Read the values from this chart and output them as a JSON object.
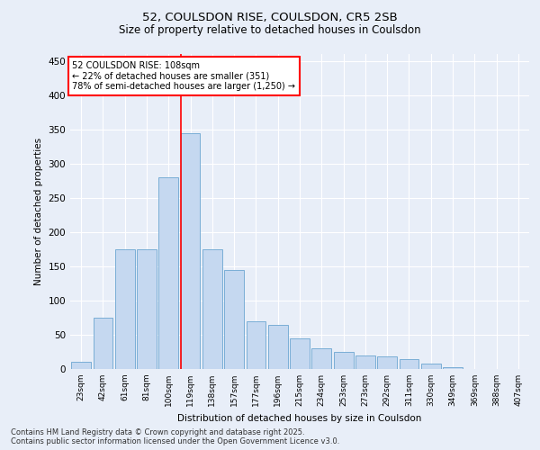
{
  "title1": "52, COULSDON RISE, COULSDON, CR5 2SB",
  "title2": "Size of property relative to detached houses in Coulsdon",
  "xlabel": "Distribution of detached houses by size in Coulsdon",
  "ylabel": "Number of detached properties",
  "categories": [
    "23sqm",
    "42sqm",
    "61sqm",
    "81sqm",
    "100sqm",
    "119sqm",
    "138sqm",
    "157sqm",
    "177sqm",
    "196sqm",
    "215sqm",
    "234sqm",
    "253sqm",
    "273sqm",
    "292sqm",
    "311sqm",
    "330sqm",
    "349sqm",
    "369sqm",
    "388sqm",
    "407sqm"
  ],
  "values": [
    10,
    75,
    175,
    175,
    280,
    345,
    175,
    145,
    70,
    65,
    45,
    30,
    25,
    20,
    18,
    15,
    8,
    3,
    0,
    0,
    0
  ],
  "bar_color": "#c5d8f0",
  "bar_edge_color": "#7aaed6",
  "vline_x": 4.55,
  "vline_color": "red",
  "annotation_title": "52 COULSDON RISE: 108sqm",
  "annotation_line2": "← 22% of detached houses are smaller (351)",
  "annotation_line3": "78% of semi-detached houses are larger (1,250) →",
  "annotation_box_color": "white",
  "annotation_box_edge": "red",
  "footer1": "Contains HM Land Registry data © Crown copyright and database right 2025.",
  "footer2": "Contains public sector information licensed under the Open Government Licence v3.0.",
  "bg_color": "#e8eef8",
  "ylim": [
    0,
    460
  ],
  "yticks": [
    0,
    50,
    100,
    150,
    200,
    250,
    300,
    350,
    400,
    450
  ]
}
